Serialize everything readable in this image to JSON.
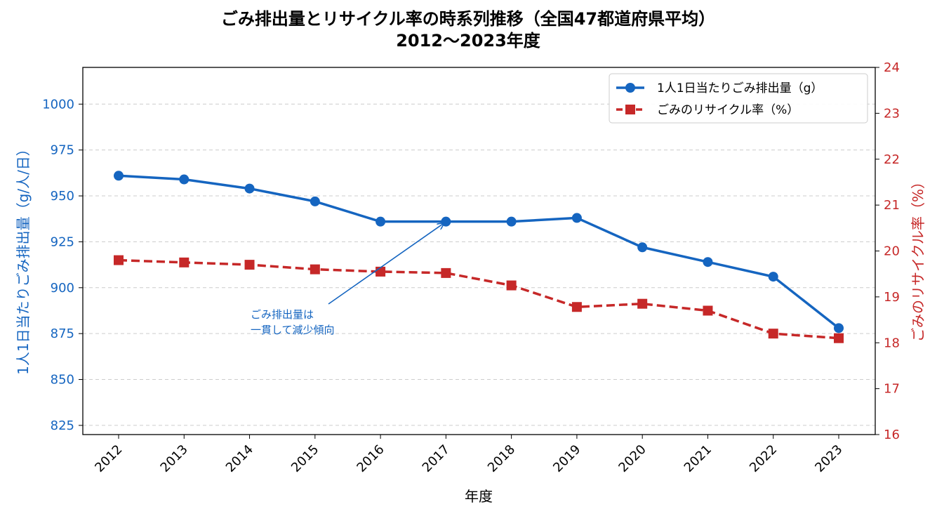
{
  "chart_data": {
    "type": "line",
    "title_line1": "ごみ排出量とリサイクル率の時系列推移（全国47都道府県平均）",
    "title_line2": "2012〜2023年度",
    "xlabel": "年度",
    "ylabel_left": "1人1日当たりごみ排出量（g/人/日）",
    "ylabel_right": "ごみのリサイクル率（%）",
    "categories": [
      "2012",
      "2013",
      "2014",
      "2015",
      "2016",
      "2017",
      "2018",
      "2019",
      "2020",
      "2021",
      "2022",
      "2023"
    ],
    "ylim_left": [
      820,
      1020
    ],
    "yticks_left": [
      "825",
      "850",
      "875",
      "900",
      "925",
      "950",
      "975",
      "1000"
    ],
    "ylim_right": [
      16,
      24
    ],
    "yticks_right": [
      "16",
      "17",
      "18",
      "19",
      "20",
      "21",
      "22",
      "23",
      "24"
    ],
    "grid": "horizontal dashed",
    "legend_placement": "top-right",
    "series": [
      {
        "name": "1人1日当たりごみ排出量（g）",
        "axis": "left",
        "color": "#1565c0",
        "marker": "circle",
        "line_style": "solid",
        "values": [
          961,
          959,
          954,
          947,
          936,
          936,
          936,
          938,
          922,
          914,
          906,
          878
        ]
      },
      {
        "name": "ごみのリサイクル率（%）",
        "axis": "right",
        "color": "#c62828",
        "marker": "square",
        "line_style": "dashed",
        "values": [
          19.8,
          19.75,
          19.7,
          19.6,
          19.55,
          19.52,
          19.25,
          18.78,
          18.85,
          18.7,
          18.2,
          18.1
        ]
      }
    ],
    "annotation": {
      "line1": "ごみ排出量は",
      "line2": "一貫して減少傾向",
      "points_to_category": "2017",
      "color": "#1565c0"
    }
  }
}
